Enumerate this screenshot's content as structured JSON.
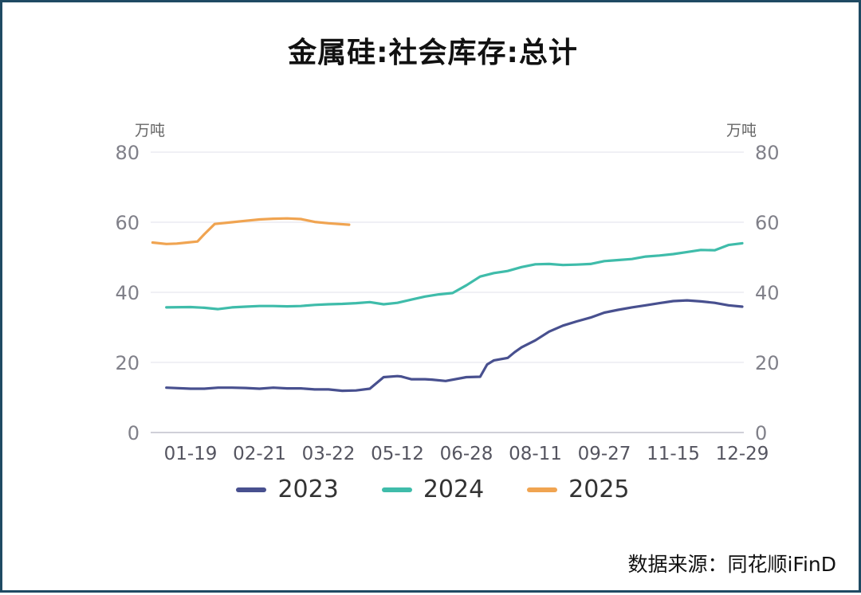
{
  "chart_data": {
    "type": "line",
    "title": "金属硅:社会库存:总计",
    "unit_left": "万吨",
    "unit_right": "万吨",
    "ylim": [
      0,
      80
    ],
    "y_ticks": [
      0,
      20,
      40,
      60,
      80
    ],
    "x_ticks": [
      "01-19",
      "02-21",
      "03-22",
      "05-12",
      "06-28",
      "08-11",
      "09-27",
      "11-15",
      "12-29"
    ],
    "x_tick_index": [
      0,
      1,
      2,
      3,
      4,
      5,
      6,
      7,
      8
    ],
    "x_range_index": [
      -0.55,
      8.0
    ],
    "grid": true,
    "legend_position": "bottom",
    "series": [
      {
        "name": "2023",
        "color": "#48508f",
        "x": [
          -0.35,
          0.0,
          0.2,
          0.4,
          0.6,
          0.8,
          1.0,
          1.2,
          1.4,
          1.6,
          1.8,
          2.0,
          2.2,
          2.4,
          2.6,
          2.8,
          3.0,
          3.05,
          3.2,
          3.4,
          3.5,
          3.7,
          4.0,
          4.2,
          4.3,
          4.4,
          4.6,
          4.7,
          4.8,
          5.0,
          5.2,
          5.4,
          5.6,
          5.8,
          6.0,
          6.2,
          6.4,
          6.6,
          6.8,
          7.0,
          7.2,
          7.4,
          7.6,
          7.8,
          8.0
        ],
        "values": [
          12.8,
          12.5,
          12.5,
          12.8,
          12.8,
          12.7,
          12.5,
          12.8,
          12.6,
          12.6,
          12.3,
          12.3,
          11.9,
          12.0,
          12.5,
          15.8,
          16.1,
          16.0,
          15.2,
          15.2,
          15.1,
          14.7,
          15.8,
          15.9,
          19.4,
          20.6,
          21.3,
          22.9,
          24.3,
          26.3,
          28.8,
          30.5,
          31.7,
          32.8,
          34.2,
          35.0,
          35.7,
          36.3,
          36.9,
          37.5,
          37.7,
          37.4,
          37.0,
          36.3,
          35.9
        ]
      },
      {
        "name": "2024",
        "color": "#3fbcaa",
        "x": [
          -0.35,
          0.0,
          0.2,
          0.4,
          0.6,
          0.8,
          1.0,
          1.2,
          1.4,
          1.6,
          1.8,
          2.0,
          2.2,
          2.4,
          2.6,
          2.8,
          3.0,
          3.2,
          3.4,
          3.6,
          3.8,
          4.0,
          4.2,
          4.4,
          4.6,
          4.8,
          5.0,
          5.2,
          5.4,
          5.6,
          5.8,
          6.0,
          6.2,
          6.4,
          6.6,
          6.8,
          7.0,
          7.2,
          7.4,
          7.6,
          7.8,
          8.0
        ],
        "values": [
          35.7,
          35.8,
          35.6,
          35.2,
          35.7,
          35.9,
          36.1,
          36.1,
          36.0,
          36.1,
          36.4,
          36.6,
          36.7,
          36.9,
          37.2,
          36.6,
          37.0,
          37.9,
          38.8,
          39.4,
          39.8,
          42.0,
          44.5,
          45.5,
          46.1,
          47.2,
          48.0,
          48.1,
          47.8,
          47.9,
          48.1,
          48.9,
          49.2,
          49.5,
          50.2,
          50.5,
          50.9,
          51.5,
          52.1,
          52.0,
          53.5,
          54.0
        ]
      },
      {
        "name": "2025",
        "color": "#f0a451",
        "x": [
          -0.55,
          -0.35,
          -0.2,
          -0.05,
          0.1,
          0.2,
          0.35,
          0.6,
          0.8,
          1.0,
          1.2,
          1.4,
          1.6,
          1.8,
          2.0,
          2.3
        ],
        "values": [
          54.2,
          53.8,
          53.9,
          54.2,
          54.5,
          56.6,
          59.5,
          60.0,
          60.4,
          60.8,
          61.0,
          61.1,
          60.9,
          60.1,
          59.7,
          59.3
        ]
      }
    ]
  },
  "source": "数据来源：同花顺iFinD"
}
